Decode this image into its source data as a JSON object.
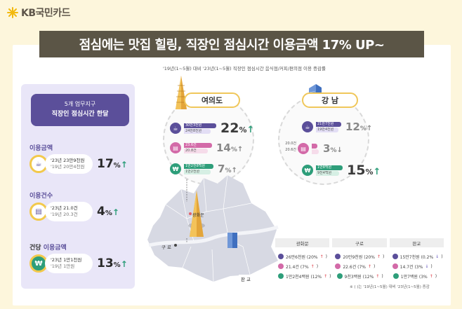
{
  "brand": {
    "name": "KB국민카드"
  },
  "title": "점심에는 맛집 힐링, 직장인 점심시간 이용금액 17% UP~",
  "subtitle": "'19년(1~5월) 대비 '23년(1~5월) 직장인 점심시간 음식점/커피/편의점 이용 증감률",
  "left_panel": {
    "header_line1": "5개 업무지구",
    "header_line2": "직장인 점심시간 한달",
    "metrics": [
      {
        "label": "이용금액",
        "current": "'23년 23만9천원",
        "previous": "'19년 20만4천원",
        "pct": "17",
        "unit": "%",
        "direction": "up"
      },
      {
        "label": "이용건수",
        "current": "'23년 21.0건",
        "previous": "'19년 20.3건",
        "pct": "4",
        "unit": "%",
        "direction": "up"
      },
      {
        "label_prefix": "건당 ",
        "label": "이용금액",
        "current": "'23년 1만1천원",
        "previous": "'19년 1만원",
        "pct": "13",
        "unit": "%",
        "direction": "up"
      }
    ]
  },
  "districts": [
    {
      "name": "여의도",
      "rows": [
        {
          "type": "coffee",
          "bar1": "30만3천원",
          "bar2": "24만8천원",
          "pct": "22",
          "unit": "%",
          "direction": "up"
        },
        {
          "type": "store",
          "bar1": "23.6건",
          "bar2": "20.8건",
          "pct": "14",
          "unit": "%",
          "direction": "up"
        },
        {
          "type": "won",
          "bar1": "1만2천8백원",
          "bar2": "1만2천원",
          "pct": "7",
          "unit": "%",
          "direction": "up"
        }
      ]
    },
    {
      "name": "강 남",
      "rows": [
        {
          "type": "coffee",
          "bar1": "21만7천원",
          "bar2": "19만4천원",
          "pct": "12",
          "unit": "%",
          "direction": "up"
        },
        {
          "type": "store",
          "bar1": "20.0건",
          "bar2": "20.6건",
          "pct": "3",
          "unit": "%",
          "direction": "down"
        },
        {
          "type": "won",
          "bar1": "1만8백원",
          "bar2": "9천4백원",
          "pct": "15",
          "unit": "%",
          "direction": "up"
        }
      ]
    }
  ],
  "map_labels": {
    "gwanghwamun": "광화문",
    "guro": "구 로",
    "pangyo": "판 교"
  },
  "table": {
    "headers": [
      "광화문",
      "구로",
      "판교"
    ],
    "rows": [
      [
        "26만6천원 (20% ",
        "20만9천원 (20% ",
        "15만7천원 (0.2% "
      ],
      [
        "21.4건 (7% ",
        "22.6건 (7% ",
        "14.7건 (3% "
      ],
      [
        "1만2천4백원 (12% ",
        "9천3백원 (12% ",
        "1만7백원 (3% "
      ]
    ],
    "directions": [
      [
        "up",
        "up",
        "down"
      ],
      [
        "up",
        "up",
        "down"
      ],
      [
        "up",
        "up",
        "up"
      ]
    ]
  },
  "footnote": "※ ( )는 '19년(1~5월) 대비 '23년(1~5월) 증감",
  "colors": {
    "title_bg": "#5b5546",
    "purple": "#5b4f9a",
    "green": "#2e9e7a",
    "yellow": "#f2c94c",
    "pink": "#d36aa8"
  }
}
